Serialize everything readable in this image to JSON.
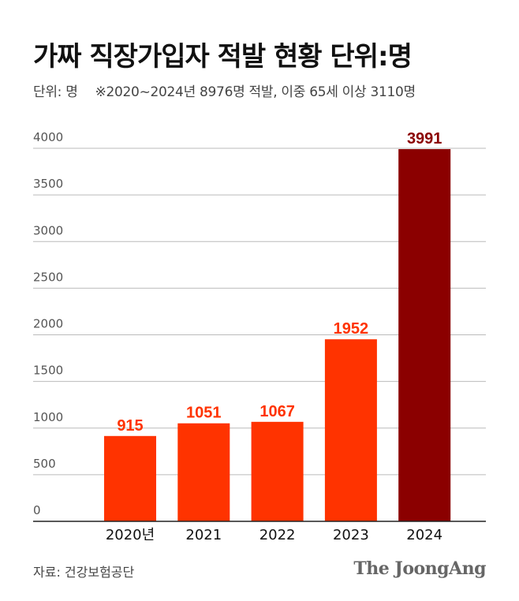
{
  "header": {
    "title": "가짜 직장가입자 적발 현황 단위:명",
    "unit": "단위: 명",
    "note": "※2020~2024년 8976명 적발, 이중 65세 이상 3110명"
  },
  "footer": {
    "source": "자료: 건강보험공단",
    "brand": "The JoongAng"
  },
  "colors": {
    "bar": "#ff3300",
    "highlight_bar": "#8b0000",
    "label": "#ff3300",
    "highlight_label": "#8b0000",
    "grid": "#bbbbbb"
  },
  "chart_data": {
    "type": "bar",
    "categories": [
      "2020년",
      "2021",
      "2022",
      "2023",
      "2024"
    ],
    "values": [
      915,
      1051,
      1067,
      1952,
      3991
    ],
    "data_labels": [
      "915",
      "1051",
      "1067",
      "1952",
      "3991"
    ],
    "highlight_index": 4,
    "ylim": [
      0,
      4000
    ],
    "yticks": [
      0,
      500,
      1000,
      1500,
      2000,
      2500,
      3000,
      3500,
      4000
    ],
    "ytick_labels": [
      "0",
      "500",
      "1000",
      "1500",
      "2000",
      "2500",
      "3000",
      "3500",
      "4000"
    ],
    "grid": true,
    "title": "",
    "xlabel": "",
    "ylabel": ""
  }
}
